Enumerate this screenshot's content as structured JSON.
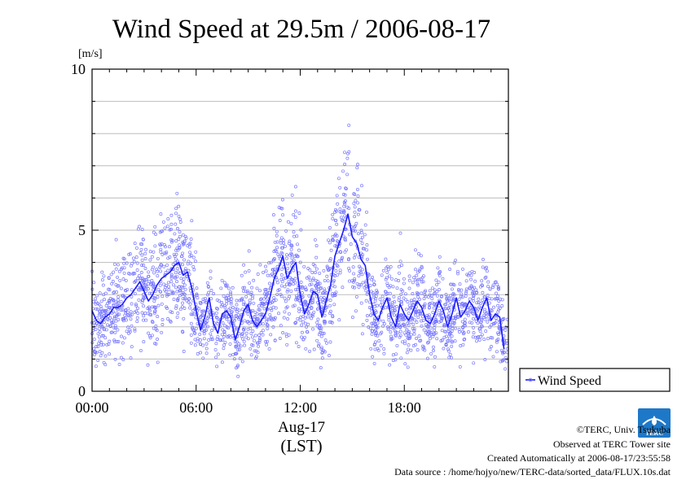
{
  "colors": {
    "line": "#1a1aff",
    "points": "#7777ff",
    "grid": "#bdbdbd",
    "axis": "#000000",
    "logo": "#1e78c8"
  },
  "chart_data": {
    "type": "line",
    "title": "Wind Speed at 29.5m / 2006-08-17",
    "ylabel": "[m/s]",
    "xlabel": "Aug-17",
    "xlabel2": "(LST)",
    "ylim": [
      0,
      10
    ],
    "xlim": [
      0,
      24
    ],
    "yticks": [
      0,
      5,
      10
    ],
    "yminor": [
      1,
      2,
      3,
      4,
      6,
      7,
      8,
      9
    ],
    "xticks": [
      {
        "x": 0,
        "label": "00:00"
      },
      {
        "x": 6,
        "label": "06:00"
      },
      {
        "x": 12,
        "label": "12:00"
      },
      {
        "x": 18,
        "label": "18:00"
      }
    ],
    "grid": true,
    "legend": {
      "position": "right",
      "label": "Wind Speed"
    },
    "series": [
      {
        "name": "Wind Speed",
        "x": [
          0.0,
          0.25,
          0.5,
          0.75,
          1.0,
          1.25,
          1.5,
          1.75,
          2.0,
          2.25,
          2.5,
          2.75,
          3.0,
          3.25,
          3.5,
          3.75,
          4.0,
          4.25,
          4.5,
          4.75,
          5.0,
          5.25,
          5.5,
          5.75,
          6.0,
          6.25,
          6.5,
          6.75,
          7.0,
          7.25,
          7.5,
          7.75,
          8.0,
          8.25,
          8.5,
          8.75,
          9.0,
          9.25,
          9.5,
          9.75,
          10.0,
          10.25,
          10.5,
          10.75,
          11.0,
          11.25,
          11.5,
          11.75,
          12.0,
          12.25,
          12.5,
          12.75,
          13.0,
          13.25,
          13.5,
          13.75,
          14.0,
          14.25,
          14.5,
          14.75,
          15.0,
          15.25,
          15.5,
          15.75,
          16.0,
          16.25,
          16.5,
          16.75,
          17.0,
          17.25,
          17.5,
          17.75,
          18.0,
          18.25,
          18.5,
          18.75,
          19.0,
          19.25,
          19.5,
          19.75,
          20.0,
          20.25,
          20.5,
          20.75,
          21.0,
          21.25,
          21.5,
          21.75,
          22.0,
          22.25,
          22.5,
          22.75,
          23.0,
          23.25,
          23.5,
          23.75
        ],
        "y": [
          2.5,
          2.2,
          2.1,
          2.3,
          2.4,
          2.6,
          2.6,
          2.7,
          2.9,
          3.0,
          3.2,
          3.4,
          3.1,
          2.8,
          3.0,
          3.3,
          3.5,
          3.6,
          3.7,
          3.9,
          4.0,
          3.6,
          3.7,
          3.2,
          2.5,
          1.9,
          2.3,
          2.9,
          2.1,
          1.8,
          2.4,
          2.5,
          2.3,
          1.6,
          2.0,
          2.5,
          2.7,
          2.2,
          2.0,
          2.2,
          2.4,
          2.9,
          3.5,
          3.8,
          4.2,
          3.5,
          3.8,
          4.0,
          3.0,
          2.4,
          2.7,
          3.1,
          3.0,
          2.3,
          2.8,
          3.3,
          4.2,
          4.6,
          5.0,
          5.5,
          4.8,
          4.6,
          4.1,
          3.9,
          3.0,
          2.4,
          2.2,
          2.6,
          2.9,
          2.3,
          2.0,
          2.7,
          2.4,
          2.2,
          2.5,
          2.8,
          2.6,
          2.2,
          2.1,
          2.4,
          2.8,
          2.5,
          2.0,
          2.4,
          2.9,
          2.3,
          2.5,
          2.8,
          2.6,
          2.2,
          2.6,
          2.9,
          2.2,
          2.4,
          2.3,
          1.3
        ]
      }
    ]
  },
  "footer": {
    "credit": "©TERC, Univ. Tsukuba",
    "observed": "Observed at TERC Tower site",
    "created": "Created Automatically at 2006-08-17/23:55:58",
    "source": "Data source : /home/hojyo/new/TERC-data/sorted_data/FLUX.10s.dat"
  },
  "logo": {
    "text": "TERC"
  }
}
